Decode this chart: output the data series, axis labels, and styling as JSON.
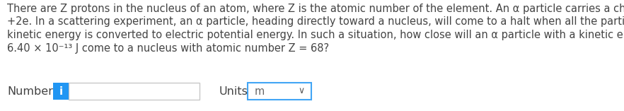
{
  "background_color": "#ffffff",
  "text_color": "#444444",
  "lines": [
    "There are Z protons in the nucleus of an atom, where Z is the atomic number of the element. An α particle carries a charge of",
    "+2e. In a scattering experiment, an α particle, heading directly toward a nucleus, will come to a halt when all the particle’s",
    "kinetic energy is converted to electric potential energy. In such a situation, how close will an α particle with a kinetic energy of",
    "6.40 × 10⁻¹³ J come to a nucleus with atomic number Z = 68?"
  ],
  "label_number": "Number",
  "label_units": "Units",
  "units_value": "m",
  "info_color": "#2196F3",
  "info_text": "i",
  "input_border_color": "#c8c8c8",
  "units_border_color": "#42a5f5",
  "text_font_size": 10.5,
  "label_font_size": 11.5,
  "fig_width": 8.82,
  "fig_height": 1.57,
  "dpi": 100
}
